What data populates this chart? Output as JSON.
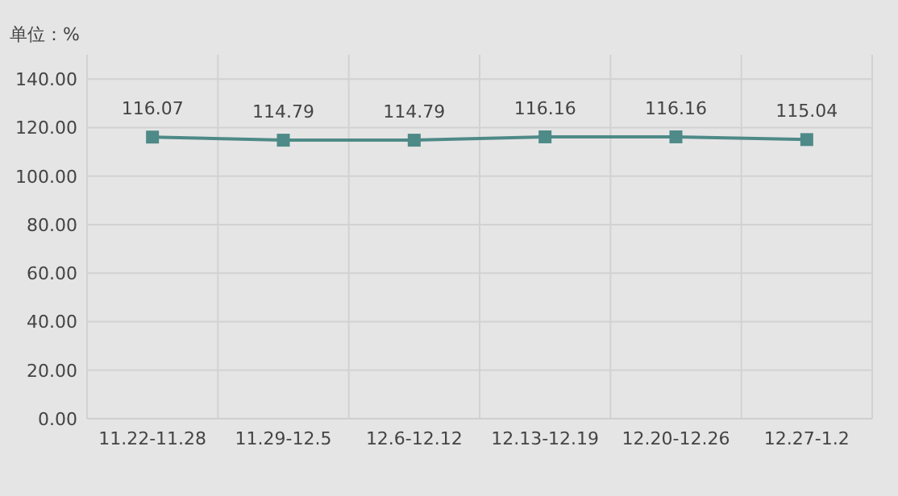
{
  "chart_data": {
    "type": "line",
    "ylabel": "单位：%",
    "categories": [
      "11.22-11.28",
      "11.29-12.5",
      "12.6-12.12",
      "12.13-12.19",
      "12.20-12.26",
      "12.27-1.2"
    ],
    "series": [
      {
        "color": "#4e8a87",
        "values": [
          116.07,
          114.79,
          114.79,
          116.16,
          116.16,
          115.04
        ]
      }
    ],
    "ylim": [
      0,
      150
    ],
    "yticks": [
      {
        "value": 0,
        "label": "0.00"
      },
      {
        "value": 20,
        "label": "20.00"
      },
      {
        "value": 40,
        "label": "40.00"
      },
      {
        "value": 60,
        "label": "60.00"
      },
      {
        "value": 80,
        "label": "80.00"
      },
      {
        "value": 100,
        "label": "100.00"
      },
      {
        "value": 120,
        "label": "120.00"
      },
      {
        "value": 140,
        "label": "140.00"
      }
    ],
    "grid": true,
    "marker": "square",
    "line_style": "solid",
    "data_labels": true
  }
}
